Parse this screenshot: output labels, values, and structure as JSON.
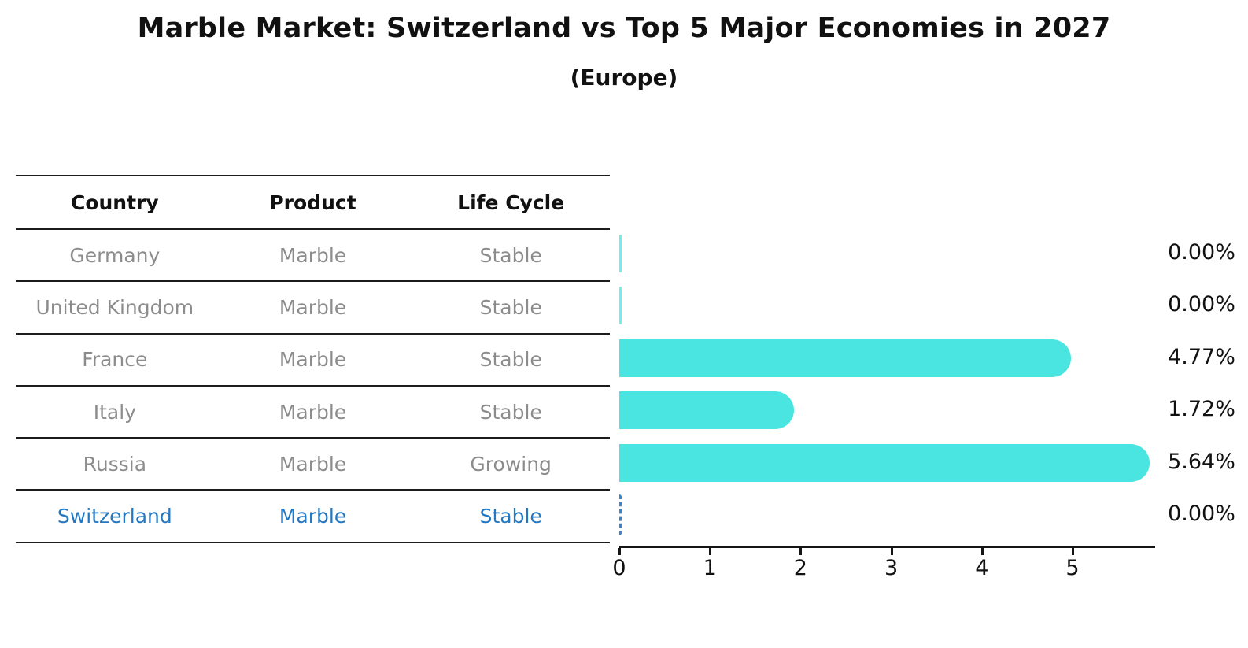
{
  "title": "Marble Market: Switzerland vs Top 5 Major Economies in 2027",
  "subtitle": "(Europe)",
  "table": {
    "headers": [
      "Country",
      "Product",
      "Life Cycle"
    ],
    "rows": [
      {
        "country": "Germany",
        "product": "Marble",
        "life_cycle": "Stable",
        "highlight": false
      },
      {
        "country": "United Kingdom",
        "product": "Marble",
        "life_cycle": "Stable",
        "highlight": false
      },
      {
        "country": "France",
        "product": "Marble",
        "life_cycle": "Stable",
        "highlight": false
      },
      {
        "country": "Italy",
        "product": "Marble",
        "life_cycle": "Stable",
        "highlight": false
      },
      {
        "country": "Russia",
        "product": "Marble",
        "life_cycle": "Growing",
        "highlight": false
      },
      {
        "country": "Switzerland",
        "product": "Marble",
        "life_cycle": "Stable",
        "highlight": true
      }
    ]
  },
  "chart_data": {
    "type": "bar",
    "orientation": "horizontal",
    "title": "Marble Market: Switzerland vs Top 5 Major Economies in 2027",
    "subtitle": "(Europe)",
    "categories": [
      "Germany",
      "United Kingdom",
      "France",
      "Italy",
      "Russia",
      "Switzerland"
    ],
    "values": [
      0.0,
      0.0,
      4.77,
      1.72,
      5.64,
      0.0
    ],
    "value_labels": [
      "0.00%",
      "0.00%",
      "4.77%",
      "1.72%",
      "5.64%",
      "0.00%"
    ],
    "xlim": [
      0,
      6
    ],
    "x_ticks": [
      0,
      1,
      2,
      3,
      4,
      5
    ],
    "grid": false,
    "legend": "none",
    "highlight_index": 5,
    "zero_value_style": {
      "default": "thin-sliver",
      "highlight": "dashed-line"
    }
  },
  "colors": {
    "bar": "#4ae4e1",
    "highlight_text": "#2478c2",
    "table_text": "#8c8c8c",
    "header_text": "#111111",
    "axis": "#151515"
  }
}
